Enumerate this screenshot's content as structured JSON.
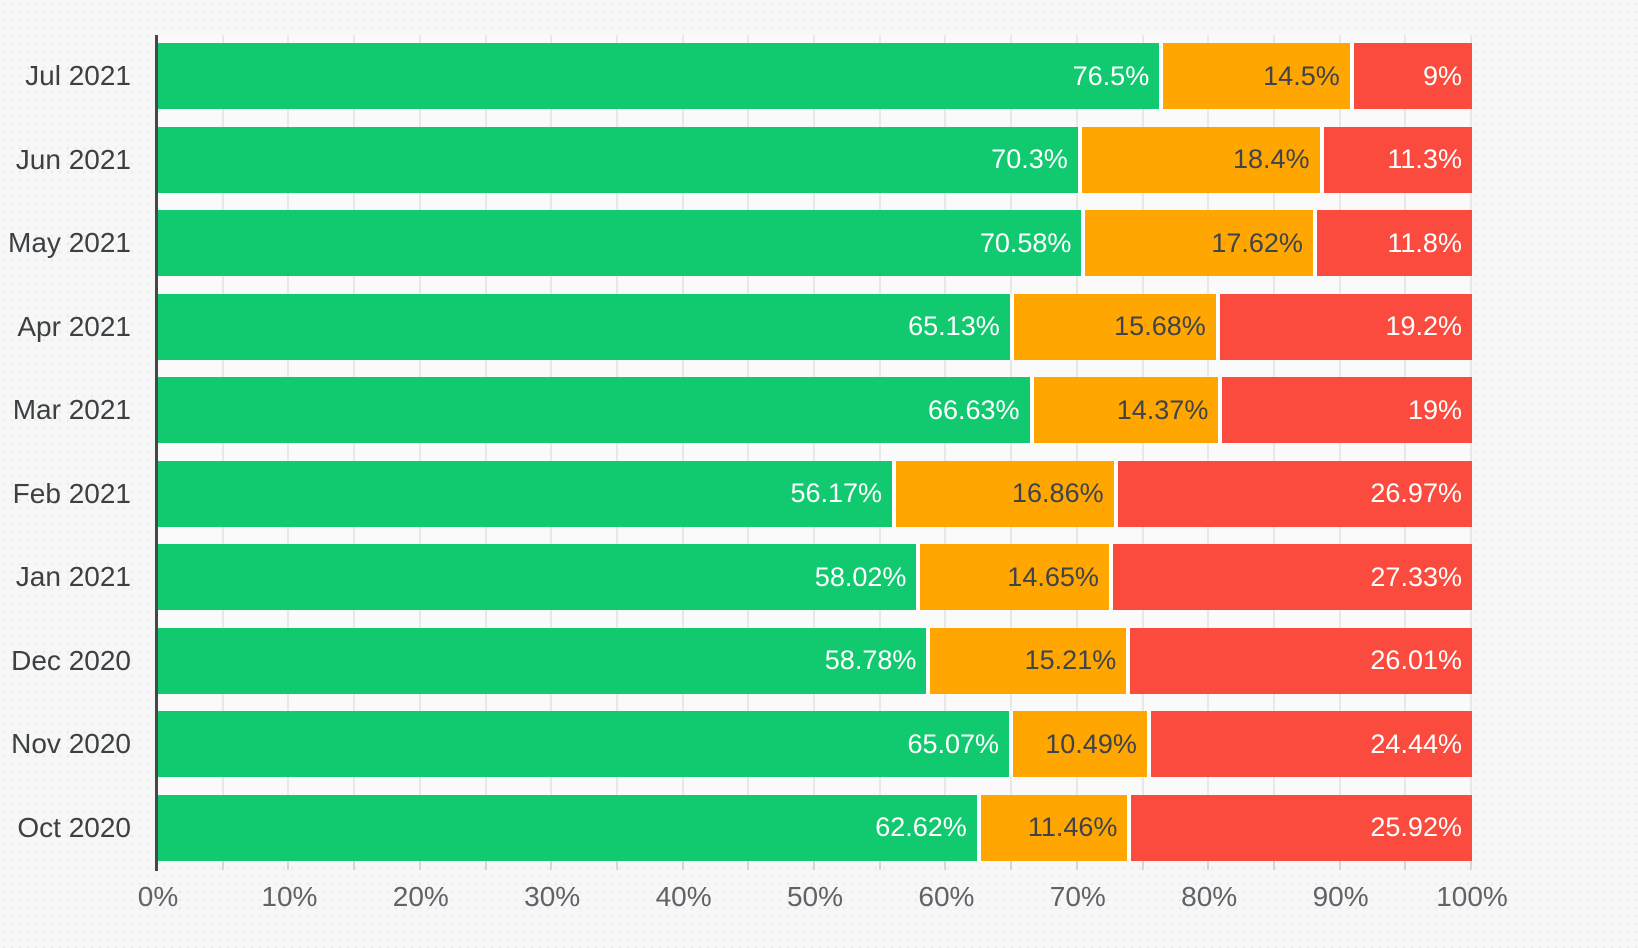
{
  "chart_data": {
    "type": "bar",
    "orientation": "horizontal",
    "stacked": true,
    "title": "",
    "legend": "none",
    "grid": true,
    "categories": [
      "Jul 2021",
      "Jun 2021",
      "May 2021",
      "Apr 2021",
      "Mar 2021",
      "Feb 2021",
      "Jan 2021",
      "Dec 2020",
      "Nov 2020",
      "Oct 2020"
    ],
    "series": [
      {
        "name": "green",
        "color": "#11ca70",
        "label_color": "#ffffff",
        "values": [
          76.5,
          70.3,
          70.58,
          65.13,
          66.63,
          56.17,
          58.02,
          58.78,
          65.07,
          62.62
        ],
        "labels": [
          "76.5%",
          "70.3%",
          "70.58%",
          "65.13%",
          "66.63%",
          "56.17%",
          "58.02%",
          "58.78%",
          "65.07%",
          "62.62%"
        ]
      },
      {
        "name": "orange",
        "color": "#ffa601",
        "label_color": "#3f434a",
        "values": [
          14.5,
          18.4,
          17.62,
          15.68,
          14.37,
          16.86,
          14.65,
          15.21,
          10.49,
          11.46
        ],
        "labels": [
          "14.5%",
          "18.4%",
          "17.62%",
          "15.68%",
          "14.37%",
          "16.86%",
          "14.65%",
          "15.21%",
          "10.49%",
          "11.46%"
        ]
      },
      {
        "name": "red",
        "color": "#fa4b3e",
        "label_color": "#ffffff",
        "values": [
          9,
          11.3,
          11.8,
          19.2,
          19,
          26.97,
          27.33,
          26.01,
          24.44,
          25.92
        ],
        "labels": [
          "9%",
          "11.3%",
          "11.8%",
          "19.2%",
          "19%",
          "26.97%",
          "27.33%",
          "26.01%",
          "24.44%",
          "25.92%"
        ]
      }
    ],
    "x_axis": {
      "min": 0,
      "max": 100,
      "major_step": 10,
      "minor_step": 5,
      "ticks": [
        "0%",
        "10%",
        "20%",
        "30%",
        "40%",
        "50%",
        "60%",
        "70%",
        "80%",
        "90%",
        "100%"
      ]
    }
  },
  "colors": {
    "background": "#f7f7f7",
    "plot_background": "#fafafa",
    "gridline": "#e8e8e8",
    "axis_line": "#474747",
    "tick": "#d6d6d6",
    "y_label": "#3c4043",
    "x_label": "#5f6368"
  }
}
